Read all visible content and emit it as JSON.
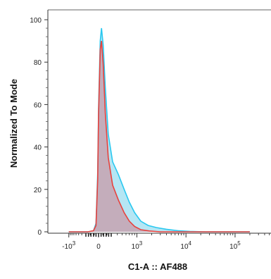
{
  "chart_data": {
    "type": "area",
    "xlabel": "C1-A :: AF488",
    "ylabel": "Normalized To Mode",
    "x_scale": "biexponential",
    "ylim": [
      0,
      100
    ],
    "y_ticks": [
      {
        "value": 0,
        "label": "0"
      },
      {
        "value": 20,
        "label": "20"
      },
      {
        "value": 40,
        "label": "40"
      },
      {
        "value": 60,
        "label": "60"
      },
      {
        "value": 80,
        "label": "80"
      },
      {
        "value": 100,
        "label": "100"
      }
    ],
    "x_ticks": [
      {
        "value": -1000,
        "base": "-10",
        "exp": "3"
      },
      {
        "value": 0,
        "base": "0",
        "exp": ""
      },
      {
        "value": 1000,
        "base": "10",
        "exp": "3"
      },
      {
        "value": 10000,
        "base": "10",
        "exp": "4"
      },
      {
        "value": 100000,
        "base": "10",
        "exp": "5"
      }
    ],
    "grid": false,
    "series": [
      {
        "color": "#29c8f0",
        "fill": "#a8e2f2",
        "points": [
          [
            -1000,
            0
          ],
          [
            -500,
            0
          ],
          [
            -250,
            0
          ],
          [
            -120,
            0.5
          ],
          [
            -60,
            4
          ],
          [
            -20,
            28
          ],
          [
            0,
            58
          ],
          [
            40,
            90
          ],
          [
            70,
            96
          ],
          [
            110,
            88
          ],
          [
            160,
            68
          ],
          [
            230,
            46
          ],
          [
            320,
            33
          ],
          [
            420,
            27
          ],
          [
            550,
            20
          ],
          [
            700,
            14
          ],
          [
            900,
            9
          ],
          [
            1200,
            5
          ],
          [
            1700,
            3
          ],
          [
            2500,
            2
          ],
          [
            4000,
            1.2
          ],
          [
            7000,
            0.5
          ],
          [
            12000,
            0.2
          ],
          [
            25000,
            0
          ],
          [
            100000,
            0
          ],
          [
            200000,
            0
          ]
        ]
      },
      {
        "color": "#e8413c",
        "fill": "#c99aa8",
        "points": [
          [
            -1000,
            0
          ],
          [
            -500,
            0
          ],
          [
            -250,
            0
          ],
          [
            -120,
            0.5
          ],
          [
            -60,
            3
          ],
          [
            -20,
            25
          ],
          [
            0,
            55
          ],
          [
            40,
            86
          ],
          [
            70,
            90
          ],
          [
            110,
            79
          ],
          [
            160,
            56
          ],
          [
            230,
            35
          ],
          [
            320,
            22
          ],
          [
            420,
            15
          ],
          [
            550,
            9
          ],
          [
            700,
            5
          ],
          [
            900,
            2.5
          ],
          [
            1200,
            1
          ],
          [
            1800,
            0.4
          ],
          [
            3000,
            0
          ],
          [
            100000,
            0
          ],
          [
            200000,
            0
          ]
        ]
      }
    ]
  }
}
